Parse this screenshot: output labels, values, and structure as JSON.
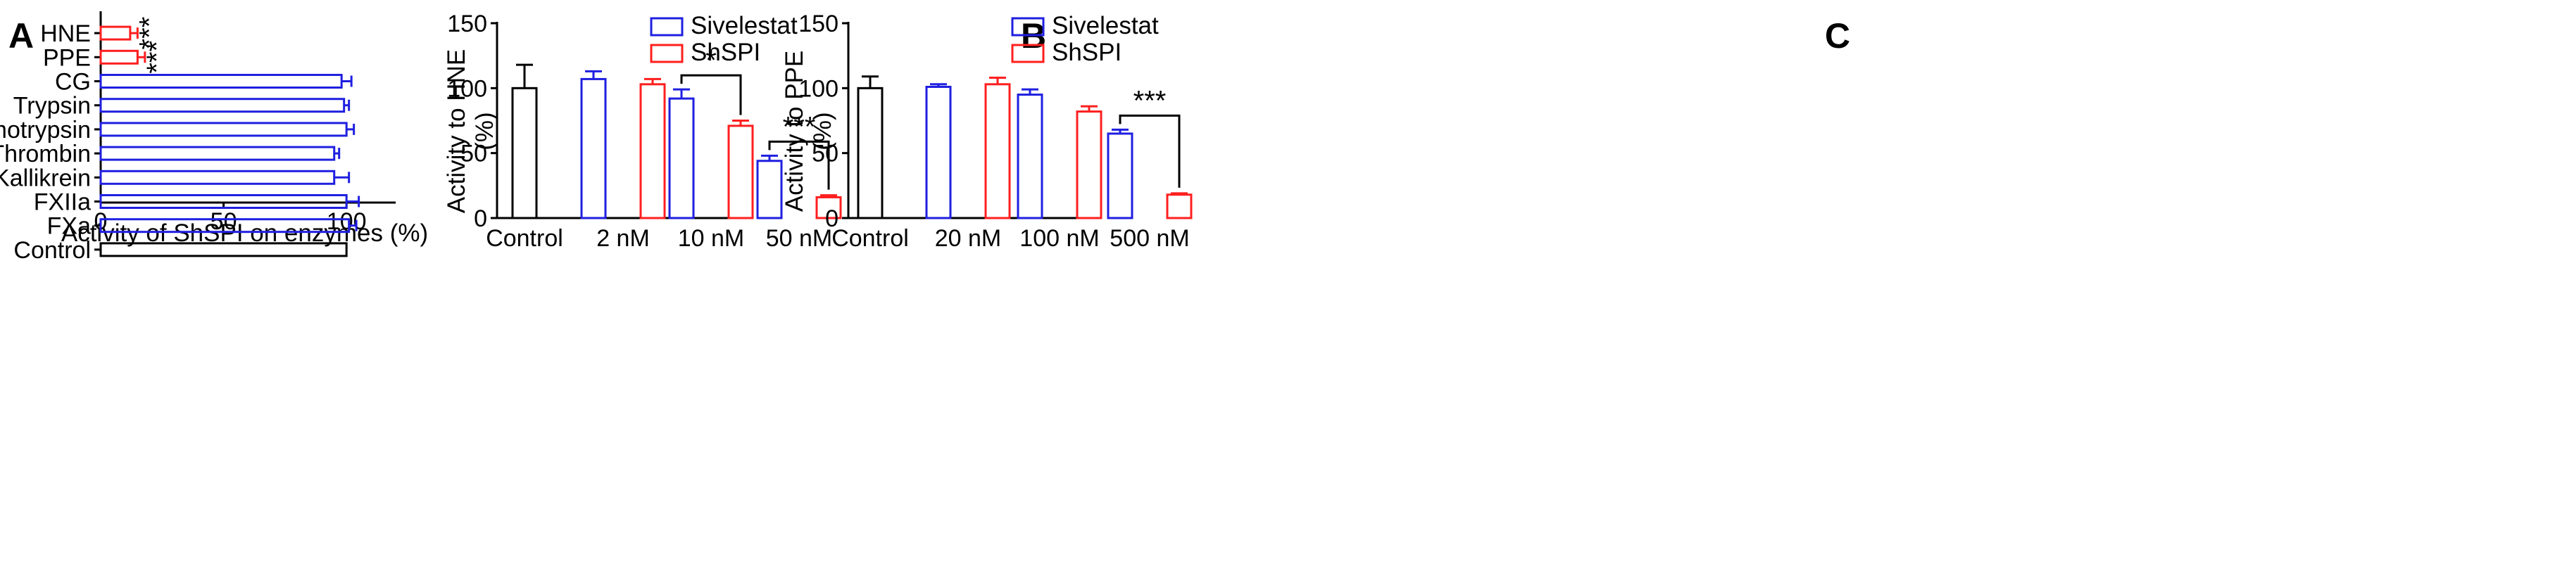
{
  "colors": {
    "sivelestat": "#1f1fe0",
    "shspi": "#ff1f1f",
    "control": "#000000",
    "axis": "#000000"
  },
  "chart_data": [
    {
      "panel": "A",
      "type": "bar",
      "orientation": "horizontal",
      "title": "",
      "xlabel": "Activity of ShSPI on enzymes (%)",
      "ylabel": "",
      "xlim": [
        0,
        120
      ],
      "xticks": [
        0,
        50,
        100
      ],
      "categories": [
        "HNE",
        "PPE",
        "CG",
        "Trypsin",
        "Chymotrypsin",
        "Thrombin",
        "Kallikrein",
        "FXIIa",
        "FXa",
        "Control"
      ],
      "values": [
        12,
        15,
        98,
        99,
        100,
        95,
        95,
        100,
        101,
        100
      ],
      "errors": [
        3,
        3,
        4,
        2,
        3,
        2,
        6,
        5,
        3,
        0
      ],
      "bar_colors": [
        "shspi",
        "shspi",
        "sivelestat",
        "sivelestat",
        "sivelestat",
        "sivelestat",
        "sivelestat",
        "sivelestat",
        "sivelestat",
        "control"
      ],
      "annotations": [
        {
          "category": "HNE",
          "text": "***"
        },
        {
          "category": "PPE",
          "text": "***"
        }
      ]
    },
    {
      "panel": "B",
      "type": "bar",
      "title": "",
      "xlabel": "",
      "ylabel": "Activity to HNE\n(%)",
      "ylim": [
        0,
        150
      ],
      "yticks": [
        0,
        50,
        100,
        150
      ],
      "categories": [
        "Control",
        "2 nM",
        "10 nM",
        "50 nM"
      ],
      "control": {
        "value": 100,
        "error": 18
      },
      "series": [
        {
          "name": "Sivelestat",
          "values": [
            null,
            107,
            92,
            44
          ],
          "errors": [
            null,
            6,
            7,
            4
          ]
        },
        {
          "name": "ShSPI",
          "values": [
            null,
            103,
            71,
            16
          ],
          "errors": [
            null,
            4,
            4,
            1.5
          ]
        }
      ],
      "legend": "top-right",
      "significance": [
        {
          "category": "10 nM",
          "text": "*"
        },
        {
          "category": "50 nM",
          "text": "***"
        }
      ]
    },
    {
      "panel": "C",
      "type": "bar",
      "title": "",
      "xlabel": "",
      "ylabel": "Activity to PPE\n(%)",
      "ylim": [
        0,
        150
      ],
      "yticks": [
        0,
        50,
        100,
        150
      ],
      "categories": [
        "Control",
        "20 nM",
        "100 nM",
        "500 nM"
      ],
      "control": {
        "value": 100,
        "error": 9
      },
      "series": [
        {
          "name": "Sivelestat",
          "values": [
            null,
            101,
            95,
            65
          ],
          "errors": [
            null,
            2,
            4,
            3
          ]
        },
        {
          "name": "ShSPI",
          "values": [
            null,
            103,
            82,
            18
          ],
          "errors": [
            null,
            5,
            4,
            1
          ]
        }
      ],
      "legend": "top-right",
      "significance": [
        {
          "category": "500 nM",
          "text": "***"
        }
      ]
    }
  ]
}
